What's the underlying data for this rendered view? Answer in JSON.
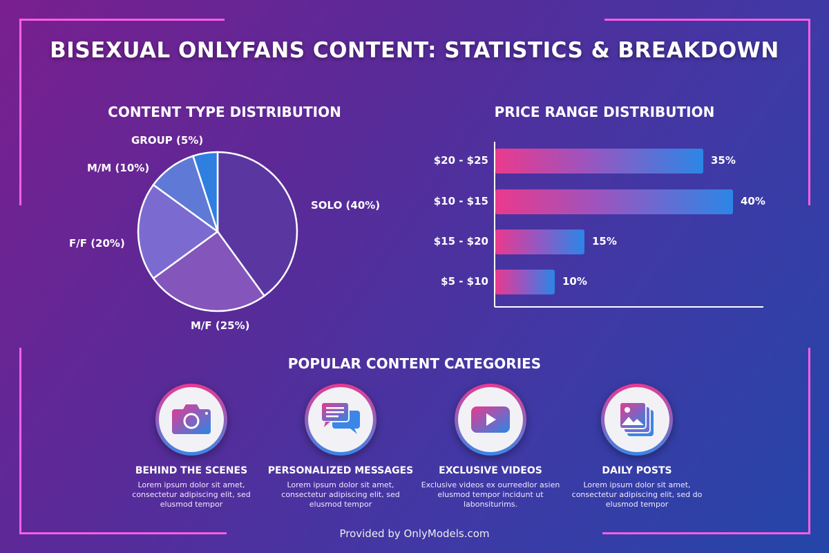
{
  "title": "BISEXUAL ONLYFANS CONTENT: STATISTICS & BREAKDOWN",
  "footer": "Provided by OnlyModels.com",
  "colors": {
    "accent_pink": "#e83a8f",
    "accent_blue": "#3b86e6",
    "neon": "#ff5ee6"
  },
  "chart_data": [
    {
      "type": "pie",
      "title": "CONTENT TYPE DISTRIBUTION",
      "slices": [
        {
          "label": "SOLO (40%)",
          "value": 40,
          "color": "#5a37a0"
        },
        {
          "label": "M/F (25%)",
          "value": 25,
          "color": "#8455bb"
        },
        {
          "label": "F/F (20%)",
          "value": 20,
          "color": "#7b6bd0"
        },
        {
          "label": "M/M (10%)",
          "value": 10,
          "color": "#5f7ad6"
        },
        {
          "label": "GROUP (5%)",
          "value": 5,
          "color": "#2e7fe0"
        }
      ]
    },
    {
      "type": "bar",
      "orientation": "horizontal",
      "title": "PRICE RANGE DISTRIBUTION",
      "categories": [
        "$20 - $25",
        "$10 - $15",
        "$15 - $20",
        "$5 - $10"
      ],
      "values": [
        35,
        40,
        15,
        10
      ],
      "data_labels": [
        "35%",
        "40%",
        "15%",
        "10%"
      ],
      "xlim": [
        0,
        40
      ]
    }
  ],
  "categories_section": {
    "title": "POPULAR CONTENT CATEGORIES",
    "items": [
      {
        "icon": "camera-icon",
        "title": "BEHIND THE SCENES",
        "desc": "Lorem ipsum dolor sit amet, consectetur adipiscing elit, sed elusmod tempor"
      },
      {
        "icon": "chat-bubbles-icon",
        "title": "PERSONALIZED MESSAGES",
        "desc": "Lorem ipsum dolor sit amet, consectetur adipiscing elit, sed elusmod tempor"
      },
      {
        "icon": "play-video-icon",
        "title": "EXCLUSIVE VIDEOS",
        "desc": "Exclusive videos ex ourreedlor asien elusmod tempor incidunt ut labonsiturims."
      },
      {
        "icon": "image-stack-icon",
        "title": "DAILY POSTS",
        "desc": "Lorem ipsum dolor sit amet, consectetur adipiscing elit, sed do elusmod tempor"
      }
    ]
  }
}
